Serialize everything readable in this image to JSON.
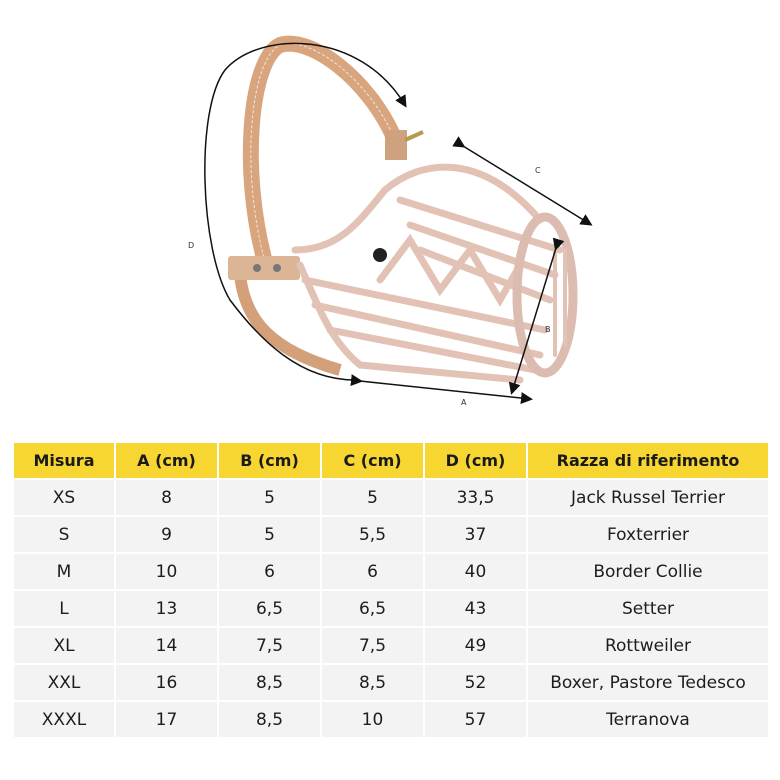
{
  "illustration": {
    "subject": "dog muzzle with strap",
    "dimension_labels": [
      "A",
      "B",
      "C",
      "D"
    ]
  },
  "table": {
    "header_color": "#f8d631",
    "headers": [
      "Misura",
      "A (cm)",
      "B (cm)",
      "C (cm)",
      "D (cm)",
      "Razza di riferimento"
    ],
    "rows": [
      [
        "XS",
        "8",
        "5",
        "5",
        "33,5",
        "Jack Russel Terrier"
      ],
      [
        "S",
        "9",
        "5",
        "5,5",
        "37",
        "Foxterrier"
      ],
      [
        "M",
        "10",
        "6",
        "6",
        "40",
        "Border Collie"
      ],
      [
        "L",
        "13",
        "6,5",
        "6,5",
        "43",
        "Setter"
      ],
      [
        "XL",
        "14",
        "7,5",
        "7,5",
        "49",
        "Rottweiler"
      ],
      [
        "XXL",
        "16",
        "8,5",
        "8,5",
        "52",
        "Boxer, Pastore Tedesco"
      ],
      [
        "XXXL",
        "17",
        "8,5",
        "10",
        "57",
        "Terranova"
      ]
    ]
  }
}
